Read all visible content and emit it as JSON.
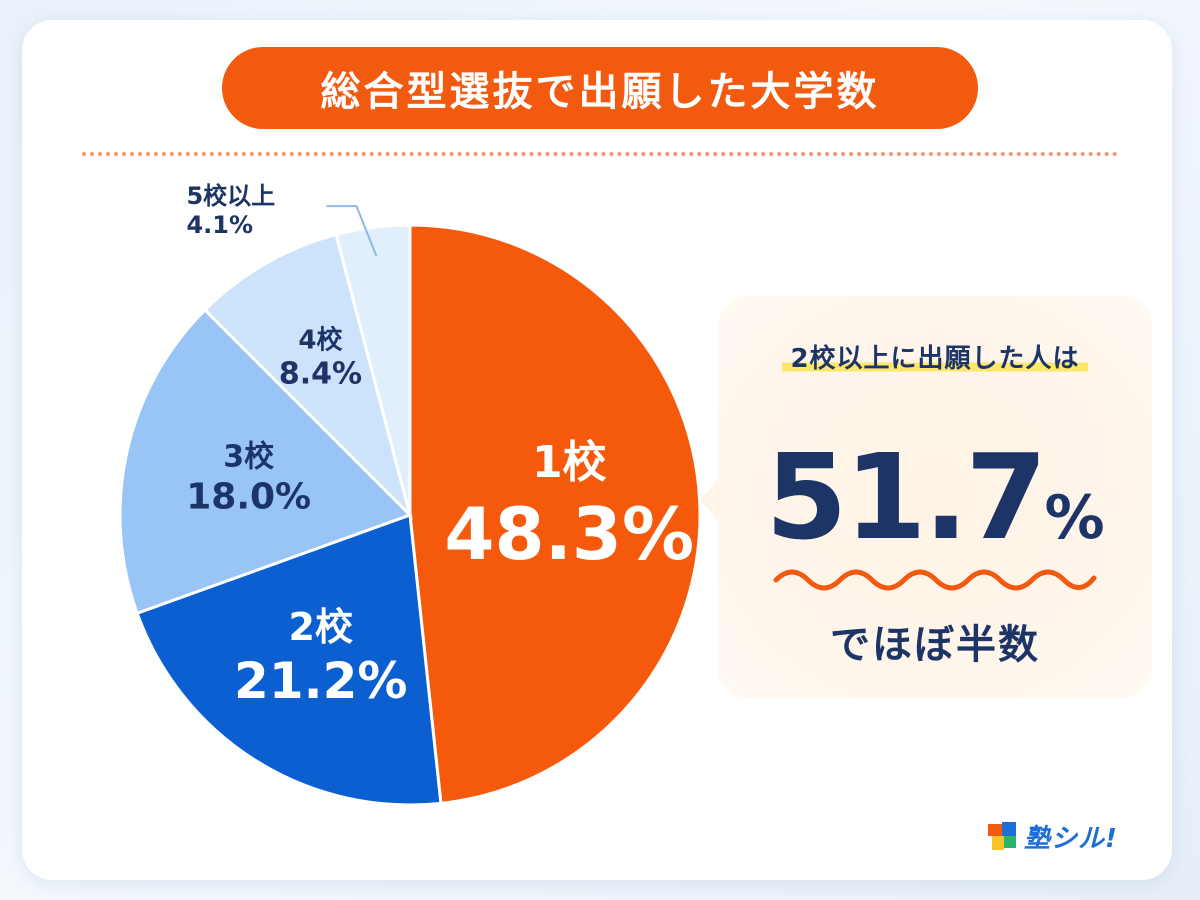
{
  "title": "総合型選抜で出願した大学数",
  "chart_data": {
    "type": "pie",
    "title": "総合型選抜で出願した大学数",
    "slices": [
      {
        "label": "1校",
        "value": 48.3,
        "display": "48.3%",
        "color": "#f55a0c"
      },
      {
        "label": "2校",
        "value": 21.2,
        "display": "21.2%",
        "color": "#0b5fd0"
      },
      {
        "label": "3校",
        "value": 18.0,
        "display": "18.0%",
        "color": "#98c5f6"
      },
      {
        "label": "4校",
        "value": 8.4,
        "display": "8.4%",
        "color": "#cde3fb"
      },
      {
        "label": "5校以上",
        "value": 4.1,
        "display": "4.1%",
        "color": "#e1eefc"
      }
    ],
    "start": "12 o'clock",
    "direction": "clockwise"
  },
  "callout": {
    "heading": "2校以上に出願した人は",
    "value_number": "51.7",
    "value_unit": "%",
    "footer": "でほぼ半数"
  },
  "logo": {
    "text": "塾シル!"
  },
  "colors": {
    "accent_orange": "#f25a0f",
    "navy_text": "#1c3566",
    "highlight_yellow": "#fde76b",
    "logo_blue": "#1c6fd6"
  }
}
